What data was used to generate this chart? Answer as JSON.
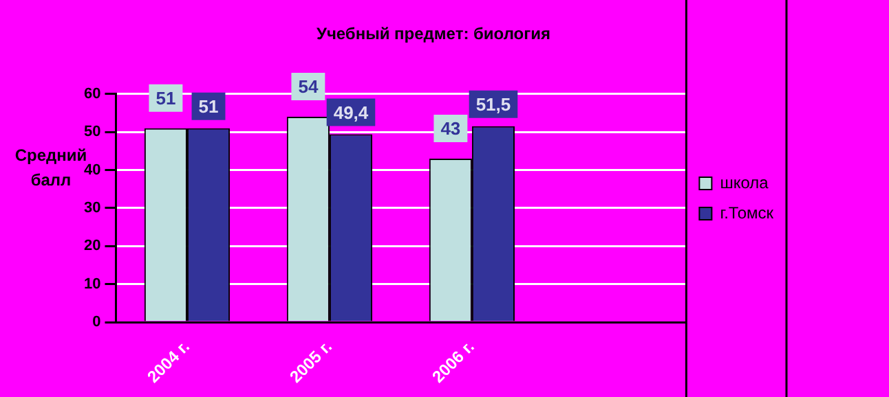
{
  "chart_data": {
    "type": "bar",
    "title": "Учебный предмет: биология",
    "ylabel": "Средний балл",
    "categories": [
      "2004 г.",
      "2005 г.",
      "2006 г.",
      null
    ],
    "series": [
      {
        "name": "школа",
        "color": "#bfe0e0",
        "values": [
          51,
          54,
          43,
          null
        ],
        "value_labels": [
          "51",
          "54",
          "43",
          null
        ]
      },
      {
        "name": "г.Томск",
        "color": "#333399",
        "values": [
          51,
          49.4,
          51.5,
          null
        ],
        "value_labels": [
          "51",
          "49,4",
          "51,5",
          null
        ]
      }
    ],
    "ylim": [
      0,
      60
    ],
    "yticks": [
      0,
      10,
      20,
      30,
      40,
      50,
      60
    ],
    "grid": "y",
    "legend": "right"
  }
}
